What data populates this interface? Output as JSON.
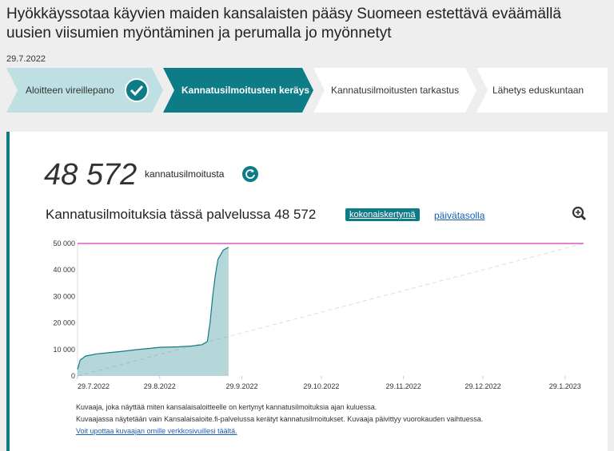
{
  "header": {
    "title": "Hyökkäyssotaa käyvien maiden kansalaisten pääsy Suomeen estettävä eväämällä uusien viisumien myöntäminen ja perumalla jo myönnetyt",
    "date": "29.7.2022"
  },
  "steps": [
    "Aloitteen vireillepano",
    "Kannatusilmoitusten keräys",
    "Kannatusilmoitusten tarkastus",
    "Lähetys eduskuntaan"
  ],
  "counter": {
    "value": "48 572",
    "label": "kannatusilmoitusta"
  },
  "chart_heading": "Kannatusilmoituksia tässä palvelussa 48 572",
  "view_buttons": [
    "kokonaiskertymä",
    "päivätasolla"
  ],
  "footer": [
    "Kuvaaja, joka näyttää miten kansalaisaloitteelle on kertynyt kannatusilmoituksia ajan kuluessa.",
    "Kuvaajassa näytetään vain Kansalaisaloite.fi-palvelussa kerätyt kannatusilmoitukset. Kuvaaja päivittyy vuorokauden vaihtuessa.",
    "Voit upottaa kuvaajan omille verkkosivuillesi täältä."
  ],
  "chart_data": {
    "type": "area",
    "color": "#0e7c86",
    "x": [
      "29.7.2022",
      "30.7.2022",
      "1.8.2022",
      "5.8.2022",
      "10.8.2022",
      "15.8.2022",
      "20.8.2022",
      "25.8.2022",
      "29.8.2022",
      "5.9.2022",
      "10.9.2022",
      "14.9.2022",
      "16.9.2022",
      "17.9.2022",
      "18.9.2022",
      "19.9.2022",
      "20.9.2022",
      "22.9.2022",
      "24.9.2022"
    ],
    "values": [
      2500,
      6000,
      7500,
      8300,
      8800,
      9300,
      9900,
      10400,
      10800,
      11000,
      11300,
      11800,
      13000,
      20000,
      30000,
      38000,
      44000,
      47500,
      48572
    ],
    "goal": 50000,
    "goal_color": "#d63bb5",
    "xlim": [
      "29.7.2022",
      "5.2.2023"
    ],
    "xticks": [
      "29.7.2022",
      "29.8.2022",
      "29.9.2022",
      "29.10.2022",
      "29.11.2022",
      "29.12.2022",
      "29.1.2023"
    ],
    "ylim": [
      0,
      50000
    ],
    "yticks": [
      0,
      {
        "value": 10000,
        "label": "10 000"
      },
      {
        "value": 20000,
        "label": "20 000"
      },
      {
        "value": 30000,
        "label": "30 000"
      },
      {
        "value": 40000,
        "label": "40 000"
      },
      {
        "value": 50000,
        "label": "50 000"
      }
    ],
    "grid": false
  }
}
